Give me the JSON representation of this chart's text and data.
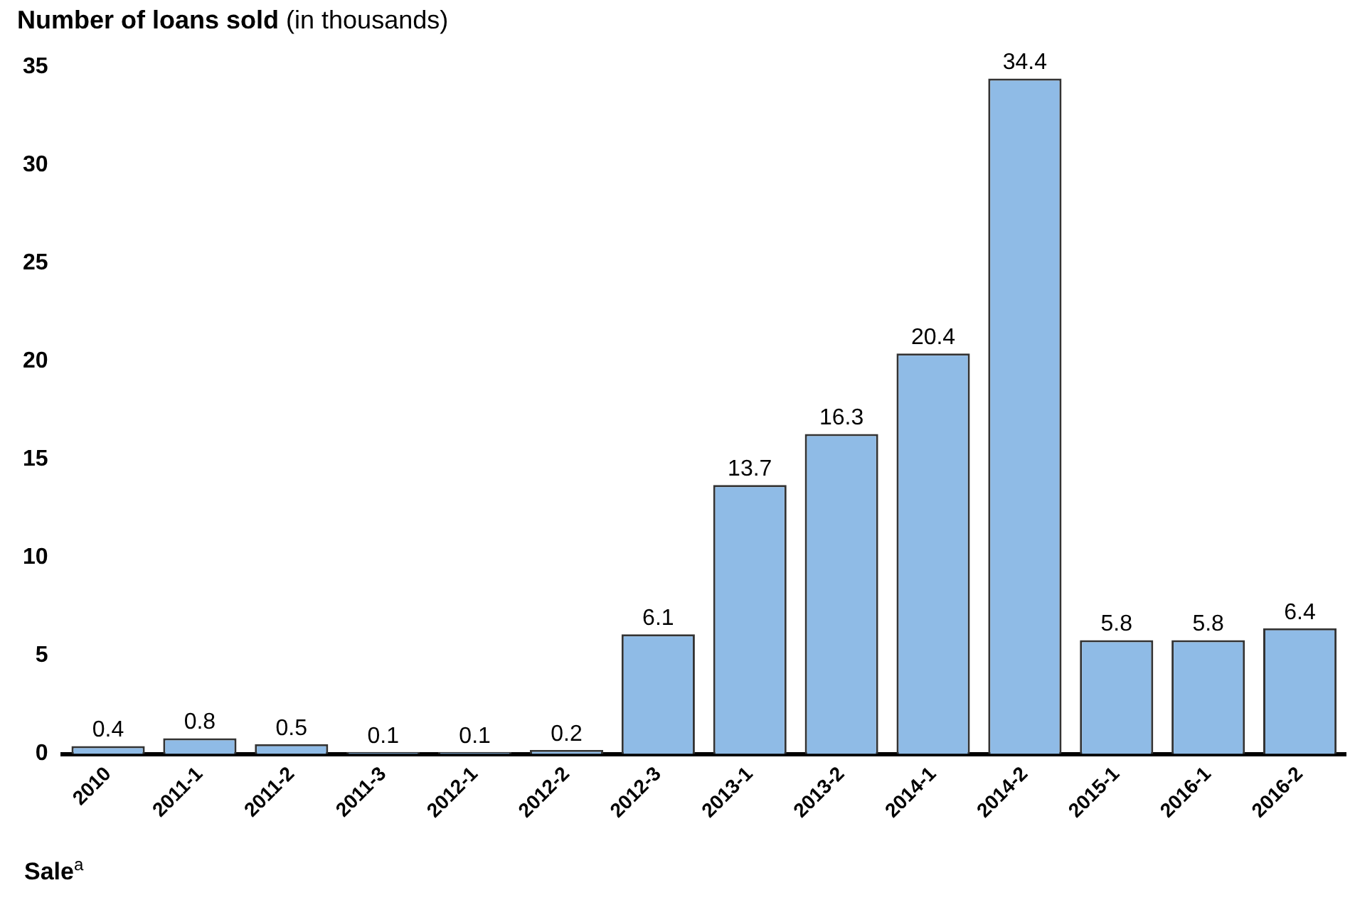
{
  "chart_data": {
    "type": "bar",
    "title": "Number of loans sold",
    "subtitle": "(in thousands)",
    "xlabel": "Sale$^{a}$",
    "categories": [
      "2010",
      "2011-1",
      "2011-2",
      "2011-3",
      "2012-1",
      "2012-2",
      "2012-3",
      "2013-1",
      "2013-2",
      "2014-1",
      "2014-2",
      "2015-1",
      "2016-1",
      "2016-2"
    ],
    "values": [
      0.4,
      0.8,
      0.5,
      0.1,
      0.1,
      0.2,
      6.1,
      13.7,
      16.3,
      20.4,
      34.4,
      5.8,
      5.8,
      6.4
    ],
    "color": "#8fbbe6",
    "ylim": [
      0,
      35
    ],
    "yticks": [
      0,
      5,
      10,
      15,
      20,
      25,
      30,
      35
    ],
    "grid": false,
    "legend": false,
    "data_labels": true
  }
}
